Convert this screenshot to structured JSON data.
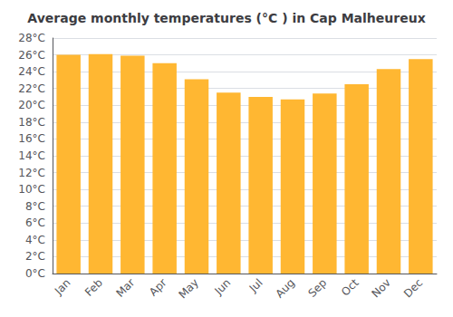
{
  "chart_data": {
    "type": "bar",
    "title": "Average monthly temperatures (°C ) in Cap Malheureux",
    "categories": [
      "Jan",
      "Feb",
      "Mar",
      "Apr",
      "May",
      "Jun",
      "Jul",
      "Aug",
      "Sep",
      "Oct",
      "Nov",
      "Dec"
    ],
    "values": [
      26.0,
      26.1,
      25.9,
      25.0,
      23.1,
      21.5,
      21.0,
      20.7,
      21.4,
      22.5,
      24.3,
      25.5
    ],
    "color": "#FFB732",
    "ylim": [
      0,
      28
    ],
    "yticks": [
      {
        "value": 0,
        "label": "0°C"
      },
      {
        "value": 2,
        "label": "2°C"
      },
      {
        "value": 4,
        "label": "4°C"
      },
      {
        "value": 6,
        "label": "6°C"
      },
      {
        "value": 8,
        "label": "8°C"
      },
      {
        "value": 10,
        "label": "10°C"
      },
      {
        "value": 12,
        "label": "12°C"
      },
      {
        "value": 14,
        "label": "14°C"
      },
      {
        "value": 16,
        "label": "16°C"
      },
      {
        "value": 18,
        "label": "18°C"
      },
      {
        "value": 20,
        "label": "20°C"
      },
      {
        "value": 22,
        "label": "22°C"
      },
      {
        "value": 24,
        "label": "24°C"
      },
      {
        "value": 26,
        "label": "26°C"
      },
      {
        "value": 28,
        "label": "28°C"
      }
    ],
    "grid": true
  }
}
